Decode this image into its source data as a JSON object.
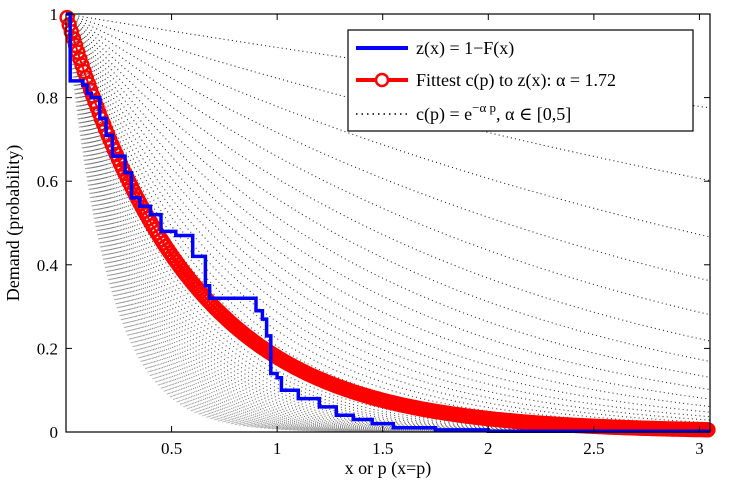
{
  "chart_data": {
    "type": "line",
    "title": "",
    "xlabel": "x or p (x=p)",
    "ylabel": "Demand (probability)",
    "xlim": [
      0,
      3.05
    ],
    "ylim": [
      0,
      1
    ],
    "x_ticks": [
      0.5,
      1,
      1.5,
      2,
      2.5,
      3
    ],
    "x_tick_labels": [
      "0.5",
      "1",
      "1.5",
      "2",
      "2.5",
      "3"
    ],
    "y_ticks": [
      0,
      0.2,
      0.4,
      0.6,
      0.8,
      1
    ],
    "y_tick_labels": [
      "0",
      "0.2",
      "0.4",
      "0.6",
      "0.8",
      "1"
    ],
    "grid": false,
    "legend_position": "top-right",
    "legend": [
      {
        "key": "empirical",
        "label": "z(x) = 1−F(x)"
      },
      {
        "key": "fit",
        "label": "Fittest c(p) to z(x): α = 1.72"
      },
      {
        "key": "family",
        "label_main": "c(p) = e",
        "label_sup": "−α p",
        "label_rest": ", α ∈ [0,5]"
      }
    ],
    "series": [
      {
        "key": "empirical",
        "name": "z(x) = 1−F(x)",
        "color": "#0000ff",
        "style": "step",
        "x": [
          0,
          0.02,
          0.02,
          0.08,
          0.08,
          0.1,
          0.1,
          0.12,
          0.12,
          0.16,
          0.16,
          0.19,
          0.19,
          0.22,
          0.22,
          0.28,
          0.28,
          0.31,
          0.31,
          0.35,
          0.35,
          0.4,
          0.4,
          0.45,
          0.45,
          0.52,
          0.52,
          0.6,
          0.6,
          0.66,
          0.66,
          0.68,
          0.68,
          0.7,
          0.7,
          0.9,
          0.9,
          0.93,
          0.93,
          0.95,
          0.95,
          0.97,
          0.97,
          1.0,
          1.0,
          1.02,
          1.02,
          1.1,
          1.1,
          1.2,
          1.2,
          1.28,
          1.28,
          1.36,
          1.36,
          1.45,
          1.45,
          1.55,
          1.55,
          1.75,
          1.75,
          2.0,
          2.0,
          3.05
        ],
        "y": [
          1.0,
          1.0,
          0.84,
          0.84,
          0.83,
          0.83,
          0.81,
          0.81,
          0.8,
          0.8,
          0.75,
          0.75,
          0.71,
          0.71,
          0.66,
          0.66,
          0.62,
          0.62,
          0.56,
          0.56,
          0.54,
          0.54,
          0.52,
          0.52,
          0.48,
          0.48,
          0.47,
          0.47,
          0.42,
          0.42,
          0.35,
          0.35,
          0.32,
          0.32,
          0.32,
          0.32,
          0.29,
          0.29,
          0.27,
          0.27,
          0.23,
          0.23,
          0.14,
          0.14,
          0.13,
          0.13,
          0.1,
          0.1,
          0.08,
          0.08,
          0.06,
          0.06,
          0.04,
          0.04,
          0.03,
          0.03,
          0.02,
          0.02,
          0.01,
          0.01,
          0.005,
          0.005,
          0.002,
          0.002
        ]
      },
      {
        "key": "fit",
        "name": "Fittest c(p) to z(x): α = 1.72",
        "color": "#ff0000",
        "style": "exp-markers",
        "alpha": 1.72,
        "x_range": [
          0.005,
          3.04
        ],
        "points": 300
      },
      {
        "key": "family",
        "name": "c(p) = e^(−α p), α ∈ [0,5]",
        "color": "#000000",
        "style": "dotted-family",
        "alpha_range": [
          0,
          5
        ],
        "curves": 60
      }
    ]
  }
}
